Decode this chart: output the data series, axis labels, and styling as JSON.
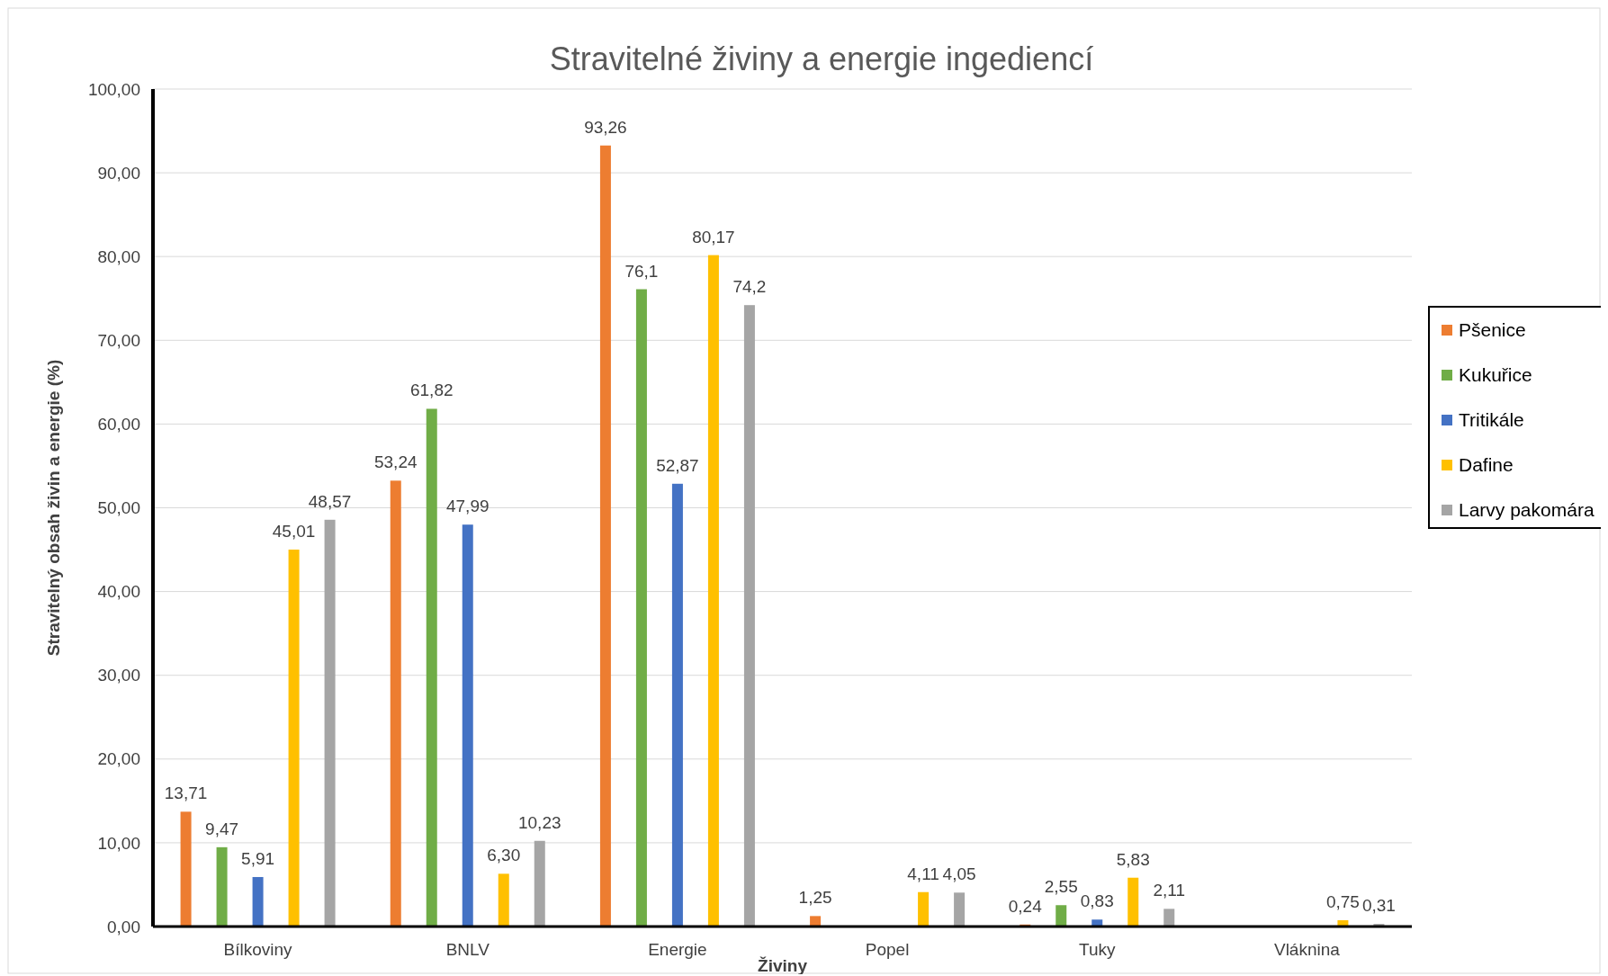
{
  "chart_data": {
    "type": "bar",
    "title": "Stravitelné živiny a energie  ingediencí",
    "xlabel": "Živiny",
    "ylabel": "Stravitelný obsah živin a energie (%)",
    "categories": [
      "Bílkoviny",
      "BNLV",
      "Energie",
      "Popel",
      "Tuky",
      "Vláknina"
    ],
    "series": [
      {
        "name": "Pšenice",
        "color": "#ed7d31",
        "values": [
          13.71,
          53.24,
          93.26,
          1.25,
          0.24,
          null
        ],
        "value_labels": [
          "13,71",
          "53,24",
          "93,26",
          "1,25",
          "0,24",
          null
        ]
      },
      {
        "name": "Kukuřice",
        "color": "#70ad47",
        "values": [
          9.47,
          61.82,
          76.1,
          null,
          2.55,
          null
        ],
        "value_labels": [
          "9,47",
          "61,82",
          "76,1",
          null,
          "2,55",
          null
        ]
      },
      {
        "name": "Tritikále",
        "color": "#4472c4",
        "values": [
          5.91,
          47.99,
          52.87,
          null,
          0.83,
          null
        ],
        "value_labels": [
          "5,91",
          "47,99",
          "52,87",
          null,
          "0,83",
          null
        ]
      },
      {
        "name": "Dafine",
        "color": "#ffc000",
        "values": [
          45.01,
          6.3,
          80.17,
          4.11,
          5.83,
          0.75
        ],
        "value_labels": [
          "45,01",
          "6,30",
          "80,17",
          "4,11",
          "5,83",
          "0,75"
        ]
      },
      {
        "name": "Larvy pakomára",
        "color": "#a5a5a5",
        "values": [
          48.57,
          10.23,
          74.2,
          4.05,
          2.11,
          0.31
        ],
        "value_labels": [
          "48,57",
          "10,23",
          "74,2",
          "4,05",
          "2,11",
          "0,31"
        ]
      }
    ],
    "ylim": [
      0,
      100
    ],
    "yticks": [
      {
        "value": 0,
        "label": "0,00"
      },
      {
        "value": 10,
        "label": "10,00"
      },
      {
        "value": 20,
        "label": "20,00"
      },
      {
        "value": 30,
        "label": "30,00"
      },
      {
        "value": 40,
        "label": "40,00"
      },
      {
        "value": 50,
        "label": "50,00"
      },
      {
        "value": 60,
        "label": "60,00"
      },
      {
        "value": 70,
        "label": "70,00"
      },
      {
        "value": 80,
        "label": "80,00"
      },
      {
        "value": 90,
        "label": "90,00"
      },
      {
        "value": 100,
        "label": "100,00"
      }
    ],
    "grid": "y",
    "legend": "right"
  }
}
